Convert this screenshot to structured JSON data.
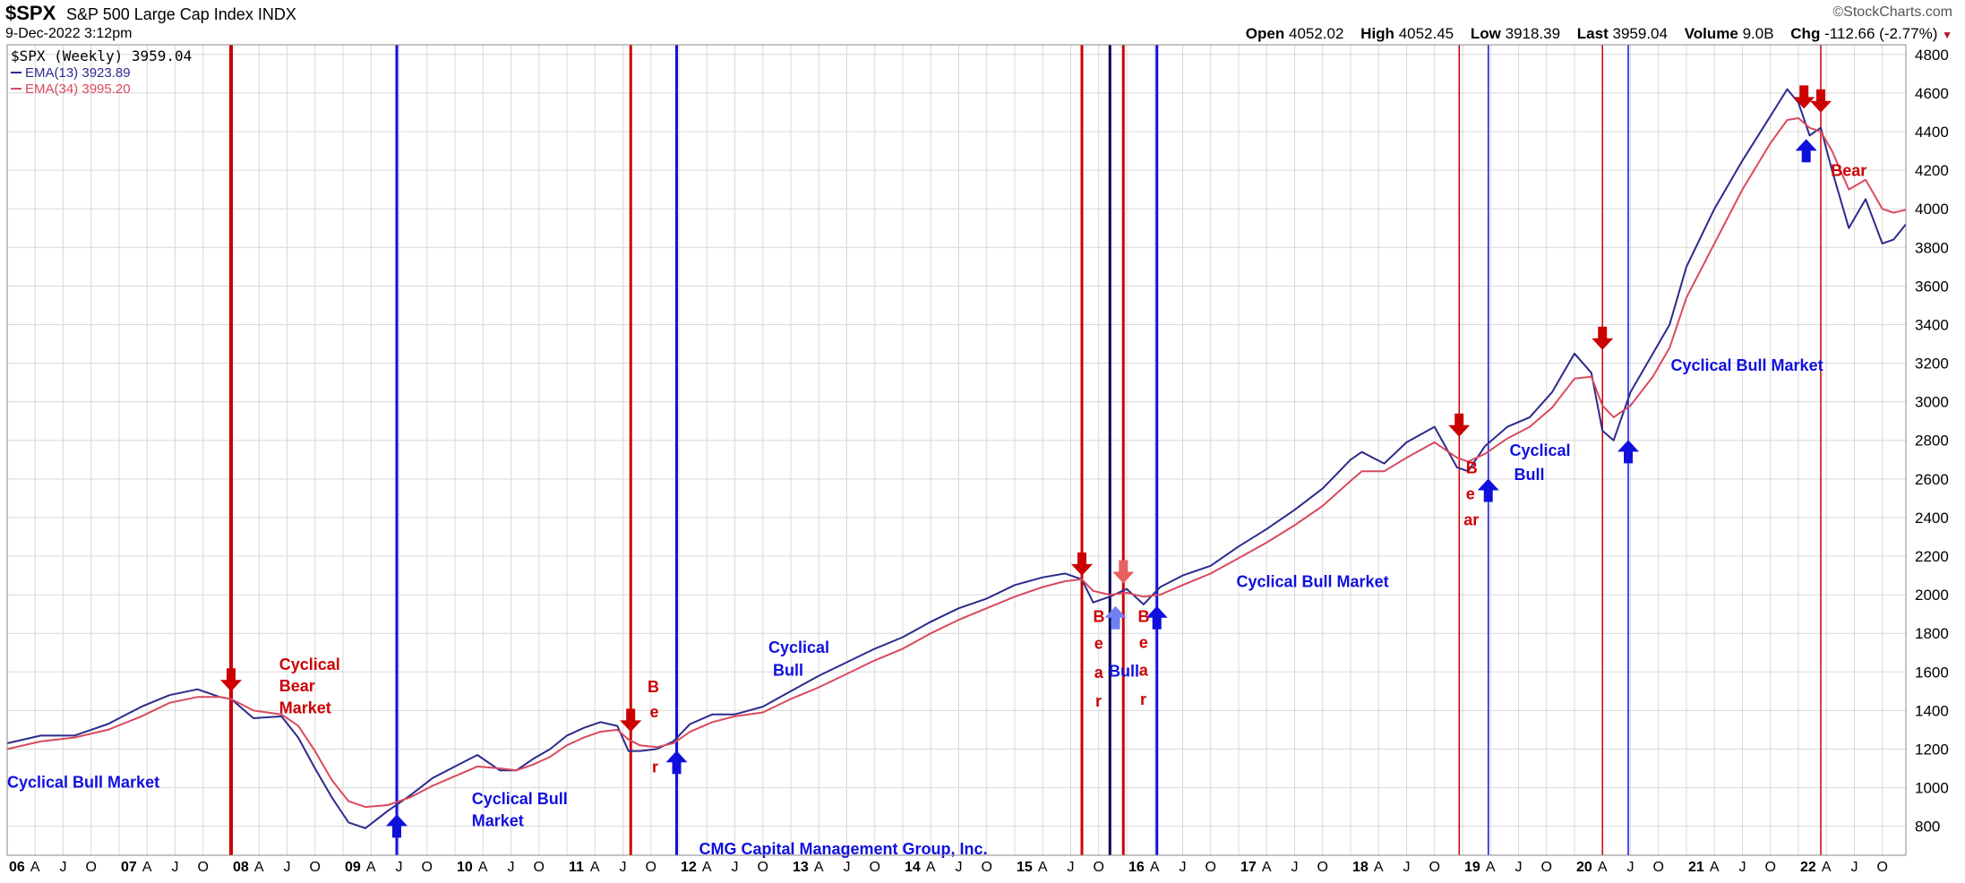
{
  "header": {
    "ticker": "$SPX",
    "index_name": "S&P 500 Large Cap Index",
    "exchange": "INDX",
    "datetime": "9-Dec-2022 3:12pm",
    "brand": "©StockCharts.com",
    "open_label": "Open",
    "open": "4052.02",
    "high_label": "High",
    "high": "4052.45",
    "low_label": "Low",
    "low": "3918.39",
    "last_label": "Last",
    "last": "3959.04",
    "volume_label": "Volume",
    "volume": "9.0B",
    "chg_label": "Chg",
    "chg": "-112.66 (-2.77%)"
  },
  "colors": {
    "ema13": "#2b2b8c",
    "ema34": "#d94a5e",
    "red_marker": "#cc0000",
    "blue_marker": "#1010dd",
    "navy_marker": "#000055",
    "grid": "#d8d8d8"
  },
  "chart_data": {
    "type": "line",
    "legend": [
      {
        "text": "$SPX (Weekly) 3959.04",
        "color": "#000000"
      },
      {
        "text": "EMA(13) 3923.89",
        "color": "#2b2b8c"
      },
      {
        "text": "EMA(34) 3995.20",
        "color": "#d94a5e"
      }
    ],
    "ylim": [
      650,
      4850
    ],
    "yticks": [
      800,
      1000,
      1200,
      1400,
      1600,
      1800,
      2000,
      2200,
      2400,
      2600,
      2800,
      3000,
      3200,
      3400,
      3600,
      3800,
      4000,
      4200,
      4400,
      4600,
      4800
    ],
    "xlim": [
      2006.0,
      2022.96
    ],
    "xticks": [
      {
        "x": 2006.0,
        "label": "06",
        "major": true
      },
      {
        "x": 2006.25,
        "label": "A"
      },
      {
        "x": 2006.5,
        "label": "J"
      },
      {
        "x": 2006.75,
        "label": "O"
      },
      {
        "x": 2007.0,
        "label": "07",
        "major": true
      },
      {
        "x": 2007.25,
        "label": "A"
      },
      {
        "x": 2007.5,
        "label": "J"
      },
      {
        "x": 2007.75,
        "label": "O"
      },
      {
        "x": 2008.0,
        "label": "08",
        "major": true
      },
      {
        "x": 2008.25,
        "label": "A"
      },
      {
        "x": 2008.5,
        "label": "J"
      },
      {
        "x": 2008.75,
        "label": "O"
      },
      {
        "x": 2009.0,
        "label": "09",
        "major": true
      },
      {
        "x": 2009.25,
        "label": "A"
      },
      {
        "x": 2009.5,
        "label": "J"
      },
      {
        "x": 2009.75,
        "label": "O"
      },
      {
        "x": 2010.0,
        "label": "10",
        "major": true
      },
      {
        "x": 2010.25,
        "label": "A"
      },
      {
        "x": 2010.5,
        "label": "J"
      },
      {
        "x": 2010.75,
        "label": "O"
      },
      {
        "x": 2011.0,
        "label": "11",
        "major": true
      },
      {
        "x": 2011.25,
        "label": "A"
      },
      {
        "x": 2011.5,
        "label": "J"
      },
      {
        "x": 2011.75,
        "label": "O"
      },
      {
        "x": 2012.0,
        "label": "12",
        "major": true
      },
      {
        "x": 2012.25,
        "label": "A"
      },
      {
        "x": 2012.5,
        "label": "J"
      },
      {
        "x": 2012.75,
        "label": "O"
      },
      {
        "x": 2013.0,
        "label": "13",
        "major": true
      },
      {
        "x": 2013.25,
        "label": "A"
      },
      {
        "x": 2013.5,
        "label": "J"
      },
      {
        "x": 2013.75,
        "label": "O"
      },
      {
        "x": 2014.0,
        "label": "14",
        "major": true
      },
      {
        "x": 2014.25,
        "label": "A"
      },
      {
        "x": 2014.5,
        "label": "J"
      },
      {
        "x": 2014.75,
        "label": "O"
      },
      {
        "x": 2015.0,
        "label": "15",
        "major": true
      },
      {
        "x": 2015.25,
        "label": "A"
      },
      {
        "x": 2015.5,
        "label": "J"
      },
      {
        "x": 2015.75,
        "label": "O"
      },
      {
        "x": 2016.0,
        "label": "16",
        "major": true
      },
      {
        "x": 2016.25,
        "label": "A"
      },
      {
        "x": 2016.5,
        "label": "J"
      },
      {
        "x": 2016.75,
        "label": "O"
      },
      {
        "x": 2017.0,
        "label": "17",
        "major": true
      },
      {
        "x": 2017.25,
        "label": "A"
      },
      {
        "x": 2017.5,
        "label": "J"
      },
      {
        "x": 2017.75,
        "label": "O"
      },
      {
        "x": 2018.0,
        "label": "18",
        "major": true
      },
      {
        "x": 2018.25,
        "label": "A"
      },
      {
        "x": 2018.5,
        "label": "J"
      },
      {
        "x": 2018.75,
        "label": "O"
      },
      {
        "x": 2019.0,
        "label": "19",
        "major": true
      },
      {
        "x": 2019.25,
        "label": "A"
      },
      {
        "x": 2019.5,
        "label": "J"
      },
      {
        "x": 2019.75,
        "label": "O"
      },
      {
        "x": 2020.0,
        "label": "20",
        "major": true
      },
      {
        "x": 2020.25,
        "label": "A"
      },
      {
        "x": 2020.5,
        "label": "J"
      },
      {
        "x": 2020.75,
        "label": "O"
      },
      {
        "x": 2021.0,
        "label": "21",
        "major": true
      },
      {
        "x": 2021.25,
        "label": "A"
      },
      {
        "x": 2021.5,
        "label": "J"
      },
      {
        "x": 2021.75,
        "label": "O"
      },
      {
        "x": 2022.0,
        "label": "22",
        "major": true
      },
      {
        "x": 2022.25,
        "label": "A"
      },
      {
        "x": 2022.5,
        "label": "J"
      },
      {
        "x": 2022.75,
        "label": "O"
      }
    ],
    "grid": true,
    "legend_placement": "top-left",
    "series": [
      {
        "name": "EMA(13)",
        "color": "#2b2b8c",
        "width": 2,
        "x": [
          2006.0,
          2006.3,
          2006.6,
          2006.9,
          2007.2,
          2007.45,
          2007.7,
          2007.9,
          2008.0,
          2008.2,
          2008.45,
          2008.6,
          2008.75,
          2008.9,
          2009.05,
          2009.2,
          2009.4,
          2009.6,
          2009.8,
          2010.0,
          2010.2,
          2010.4,
          2010.55,
          2010.7,
          2010.85,
          2011.0,
          2011.15,
          2011.3,
          2011.45,
          2011.55,
          2011.65,
          2011.8,
          2011.95,
          2012.1,
          2012.3,
          2012.5,
          2012.75,
          2013.0,
          2013.25,
          2013.5,
          2013.75,
          2014.0,
          2014.25,
          2014.5,
          2014.75,
          2015.0,
          2015.25,
          2015.45,
          2015.6,
          2015.7,
          2015.85,
          2016.0,
          2016.15,
          2016.3,
          2016.5,
          2016.75,
          2017.0,
          2017.25,
          2017.5,
          2017.75,
          2018.0,
          2018.1,
          2018.3,
          2018.5,
          2018.75,
          2018.95,
          2019.05,
          2019.2,
          2019.4,
          2019.6,
          2019.8,
          2020.0,
          2020.15,
          2020.25,
          2020.35,
          2020.5,
          2020.7,
          2020.85,
          2021.0,
          2021.25,
          2021.5,
          2021.75,
          2021.9,
          2022.0,
          2022.1,
          2022.2,
          2022.3,
          2022.45,
          2022.6,
          2022.75,
          2022.85,
          2022.96
        ],
        "y": [
          1230,
          1270,
          1270,
          1330,
          1420,
          1480,
          1510,
          1470,
          1460,
          1360,
          1370,
          1260,
          1100,
          950,
          820,
          790,
          880,
          960,
          1050,
          1110,
          1170,
          1090,
          1090,
          1150,
          1200,
          1270,
          1310,
          1340,
          1320,
          1190,
          1190,
          1200,
          1240,
          1330,
          1380,
          1380,
          1420,
          1500,
          1580,
          1650,
          1720,
          1780,
          1860,
          1930,
          1980,
          2050,
          2090,
          2110,
          2080,
          1960,
          1990,
          2030,
          1950,
          2040,
          2100,
          2150,
          2250,
          2340,
          2440,
          2550,
          2700,
          2740,
          2680,
          2790,
          2870,
          2660,
          2640,
          2770,
          2870,
          2920,
          3050,
          3250,
          3150,
          2850,
          2800,
          3050,
          3250,
          3400,
          3700,
          4000,
          4250,
          4480,
          4620,
          4550,
          4380,
          4420,
          4200,
          3900,
          4050,
          3820,
          3840,
          3920
        ]
      },
      {
        "name": "EMA(34)",
        "color": "#d94a5e",
        "width": 2,
        "x": [
          2006.0,
          2006.3,
          2006.6,
          2006.9,
          2007.2,
          2007.45,
          2007.7,
          2007.9,
          2008.0,
          2008.2,
          2008.45,
          2008.6,
          2008.75,
          2008.9,
          2009.05,
          2009.2,
          2009.4,
          2009.6,
          2009.8,
          2010.0,
          2010.2,
          2010.4,
          2010.55,
          2010.7,
          2010.85,
          2011.0,
          2011.15,
          2011.3,
          2011.45,
          2011.55,
          2011.65,
          2011.8,
          2011.95,
          2012.1,
          2012.3,
          2012.5,
          2012.75,
          2013.0,
          2013.25,
          2013.5,
          2013.75,
          2014.0,
          2014.25,
          2014.5,
          2014.75,
          2015.0,
          2015.25,
          2015.45,
          2015.6,
          2015.7,
          2015.85,
          2016.0,
          2016.15,
          2016.3,
          2016.5,
          2016.75,
          2017.0,
          2017.25,
          2017.5,
          2017.75,
          2018.0,
          2018.1,
          2018.3,
          2018.5,
          2018.75,
          2018.95,
          2019.05,
          2019.2,
          2019.4,
          2019.6,
          2019.8,
          2020.0,
          2020.15,
          2020.25,
          2020.35,
          2020.5,
          2020.7,
          2020.85,
          2021.0,
          2021.25,
          2021.5,
          2021.75,
          2021.9,
          2022.0,
          2022.1,
          2022.2,
          2022.3,
          2022.45,
          2022.6,
          2022.75,
          2022.85,
          2022.96
        ],
        "y": [
          1200,
          1240,
          1260,
          1300,
          1370,
          1440,
          1470,
          1470,
          1460,
          1400,
          1380,
          1320,
          1190,
          1040,
          930,
          900,
          910,
          950,
          1010,
          1060,
          1110,
          1100,
          1090,
          1120,
          1160,
          1220,
          1260,
          1290,
          1300,
          1250,
          1220,
          1210,
          1230,
          1290,
          1340,
          1370,
          1390,
          1460,
          1520,
          1590,
          1660,
          1720,
          1800,
          1870,
          1930,
          1990,
          2040,
          2070,
          2080,
          2020,
          2000,
          2010,
          1990,
          2000,
          2050,
          2110,
          2190,
          2270,
          2360,
          2460,
          2590,
          2640,
          2640,
          2710,
          2790,
          2710,
          2690,
          2730,
          2810,
          2870,
          2970,
          3120,
          3130,
          2980,
          2920,
          2980,
          3130,
          3280,
          3540,
          3820,
          4100,
          4340,
          4460,
          4470,
          4420,
          4400,
          4300,
          4100,
          4150,
          4000,
          3980,
          3995
        ]
      }
    ],
    "vlines": [
      {
        "x": 2008.0,
        "color": "#cc0000",
        "width": 4
      },
      {
        "x": 2009.48,
        "color": "#1010dd",
        "width": 3
      },
      {
        "x": 2011.57,
        "color": "#cc0000",
        "width": 3
      },
      {
        "x": 2011.98,
        "color": "#1010dd",
        "width": 3
      },
      {
        "x": 2015.6,
        "color": "#cc0000",
        "width": 3
      },
      {
        "x": 2015.85,
        "color": "#000055",
        "width": 3
      },
      {
        "x": 2015.97,
        "color": "#cc0000",
        "width": 3
      },
      {
        "x": 2016.27,
        "color": "#1010dd",
        "width": 3
      },
      {
        "x": 2018.97,
        "color": "#cc0000",
        "width": 1.5
      },
      {
        "x": 2019.23,
        "color": "#1010dd",
        "width": 1.5
      },
      {
        "x": 2020.25,
        "color": "#cc0000",
        "width": 1.5
      },
      {
        "x": 2020.48,
        "color": "#1010dd",
        "width": 1.5
      },
      {
        "x": 2022.2,
        "color": "#cc0000",
        "width": 1.5
      }
    ],
    "arrows": [
      {
        "x": 2008.0,
        "y": 1480,
        "dir": "down",
        "color": "#cc0000"
      },
      {
        "x": 2009.48,
        "y": 880,
        "dir": "up",
        "color": "#1010dd"
      },
      {
        "x": 2011.57,
        "y": 1270,
        "dir": "down",
        "color": "#cc0000"
      },
      {
        "x": 2011.98,
        "y": 1210,
        "dir": "up",
        "color": "#1010dd"
      },
      {
        "x": 2015.6,
        "y": 2080,
        "dir": "down",
        "color": "#cc0000"
      },
      {
        "x": 2015.97,
        "y": 2040,
        "dir": "down",
        "color": "#e86060"
      },
      {
        "x": 2015.9,
        "y": 1960,
        "dir": "up",
        "color": "#7080f0"
      },
      {
        "x": 2016.27,
        "y": 1960,
        "dir": "up",
        "color": "#1010dd"
      },
      {
        "x": 2018.97,
        "y": 2800,
        "dir": "down",
        "color": "#cc0000"
      },
      {
        "x": 2019.23,
        "y": 2620,
        "dir": "up",
        "color": "#1010dd"
      },
      {
        "x": 2020.25,
        "y": 3250,
        "dir": "down",
        "color": "#cc0000"
      },
      {
        "x": 2020.48,
        "y": 2820,
        "dir": "up",
        "color": "#1010dd"
      },
      {
        "x": 2022.05,
        "y": 4500,
        "dir": "down",
        "color": "#cc0000"
      },
      {
        "x": 2022.2,
        "y": 4480,
        "dir": "down",
        "color": "#cc0000"
      },
      {
        "x": 2022.07,
        "y": 4380,
        "dir": "up",
        "color": "#1010dd"
      }
    ],
    "annotations": [
      {
        "text": "Cyclical Bull Market",
        "x": 2006.0,
        "y": 1000,
        "color": "#1010dd"
      },
      {
        "text": "Cyclical",
        "x": 2008.43,
        "y": 1610,
        "color": "#cc0000"
      },
      {
        "text": "Bear",
        "x": 2008.43,
        "y": 1500,
        "color": "#cc0000"
      },
      {
        "text": "Market",
        "x": 2008.43,
        "y": 1385,
        "color": "#cc0000"
      },
      {
        "text": "Cyclical Bull",
        "x": 2010.15,
        "y": 915,
        "color": "#1010dd"
      },
      {
        "text": "Market",
        "x": 2010.15,
        "y": 800,
        "color": "#1010dd"
      },
      {
        "text": "B",
        "x": 2011.72,
        "y": 1495,
        "color": "#cc0000"
      },
      {
        "text": "e",
        "x": 2011.74,
        "y": 1365,
        "color": "#cc0000"
      },
      {
        "text": "r",
        "x": 2011.76,
        "y": 1080,
        "color": "#cc0000"
      },
      {
        "text": "CMG Capital Management Group, Inc.",
        "x": 2012.18,
        "y": 655,
        "color": "#1010dd"
      },
      {
        "text": "Cyclical",
        "x": 2012.8,
        "y": 1700,
        "color": "#1010dd"
      },
      {
        "text": "Bull",
        "x": 2012.84,
        "y": 1580,
        "color": "#1010dd"
      },
      {
        "text": "B",
        "x": 2015.7,
        "y": 1860,
        "color": "#cc0000"
      },
      {
        "text": "e",
        "x": 2015.71,
        "y": 1720,
        "color": "#cc0000"
      },
      {
        "text": "a",
        "x": 2015.71,
        "y": 1570,
        "color": "#cc0000"
      },
      {
        "text": "r",
        "x": 2015.72,
        "y": 1420,
        "color": "#cc0000"
      },
      {
        "text": "Bull",
        "x": 2015.84,
        "y": 1575,
        "color": "#1010dd"
      },
      {
        "text": "B",
        "x": 2016.1,
        "y": 1860,
        "color": "#cc0000"
      },
      {
        "text": "e",
        "x": 2016.11,
        "y": 1725,
        "color": "#cc0000"
      },
      {
        "text": "a",
        "x": 2016.11,
        "y": 1580,
        "color": "#cc0000"
      },
      {
        "text": "r",
        "x": 2016.12,
        "y": 1430,
        "color": "#cc0000"
      },
      {
        "text": "Cyclical Bull Market",
        "x": 2016.98,
        "y": 2040,
        "color": "#1010dd"
      },
      {
        "text": "B",
        "x": 2019.03,
        "y": 2630,
        "color": "#cc0000"
      },
      {
        "text": "e",
        "x": 2019.03,
        "y": 2495,
        "color": "#cc0000"
      },
      {
        "text": "ar",
        "x": 2019.01,
        "y": 2360,
        "color": "#cc0000"
      },
      {
        "text": "Cyclical",
        "x": 2019.42,
        "y": 2720,
        "color": "#1010dd"
      },
      {
        "text": "Bull",
        "x": 2019.46,
        "y": 2595,
        "color": "#1010dd"
      },
      {
        "text": "Cyclical Bull Market",
        "x": 2020.86,
        "y": 3160,
        "color": "#1010dd"
      },
      {
        "text": "Bear",
        "x": 2022.29,
        "y": 4170,
        "color": "#cc0000"
      }
    ]
  }
}
